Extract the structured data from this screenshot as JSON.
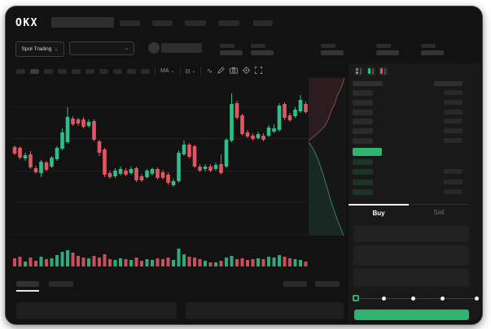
{
  "app": {
    "brand": "OKX"
  },
  "colors": {
    "up": "#2fbe8a",
    "down": "#e35561",
    "accent_green": "#2eb46e"
  },
  "header": {
    "market_type_label": "Spot Trading",
    "chevron": "⌄"
  },
  "chart_toolbar": {
    "indicator_label": "MA",
    "overlay_label": "⊟",
    "chevron": "⌄",
    "line_style": "∿"
  },
  "order_book": {
    "sell_row_count": 6,
    "buy_row_count": 4,
    "view_icons": [
      "book-combined-icon",
      "book-bids-icon",
      "book-asks-icon"
    ]
  },
  "trade_panel": {
    "tabs": [
      {
        "label": "Buy",
        "active": true
      },
      {
        "label": "Sell",
        "active": false
      }
    ],
    "slider_marks": 5
  },
  "chart_data": {
    "type": "candlestick",
    "title": "",
    "xlabel": "",
    "ylabel": "",
    "axes_labeled": false,
    "note": "UI mock: no numeric axis labels visible; OHLC values are relative chart units",
    "ohlc": [
      [
        109,
        111,
        99,
        101
      ],
      [
        108,
        110,
        94,
        96
      ],
      [
        95,
        102,
        92,
        99
      ],
      [
        100,
        104,
        82,
        84
      ],
      [
        83,
        86,
        76,
        78
      ],
      [
        77,
        93,
        72,
        91
      ],
      [
        90,
        92,
        79,
        81
      ],
      [
        85,
        98,
        83,
        96
      ],
      [
        94,
        110,
        92,
        108
      ],
      [
        107,
        132,
        105,
        127
      ],
      [
        115,
        158,
        113,
        146
      ],
      [
        144,
        147,
        135,
        137
      ],
      [
        143,
        145,
        135,
        138
      ],
      [
        143,
        146,
        132,
        134
      ],
      [
        135,
        143,
        133,
        140
      ],
      [
        141,
        143,
        116,
        118
      ],
      [
        116,
        118,
        98,
        102
      ],
      [
        106,
        108,
        72,
        75
      ],
      [
        77,
        80,
        70,
        72
      ],
      [
        73,
        83,
        71,
        80
      ],
      [
        76,
        85,
        74,
        82
      ],
      [
        80,
        83,
        73,
        75
      ],
      [
        77,
        85,
        75,
        82
      ],
      [
        83,
        85,
        66,
        68
      ],
      [
        73,
        76,
        66,
        68
      ],
      [
        72,
        82,
        70,
        80
      ],
      [
        76,
        84,
        74,
        82
      ],
      [
        82,
        84,
        69,
        71
      ],
      [
        78,
        81,
        69,
        71
      ],
      [
        75,
        78,
        63,
        65
      ],
      [
        62,
        70,
        60,
        67
      ],
      [
        67,
        105,
        65,
        102
      ],
      [
        100,
        117,
        98,
        112
      ],
      [
        112,
        114,
        95,
        97
      ],
      [
        110,
        112,
        83,
        85
      ],
      [
        85,
        88,
        78,
        80
      ],
      [
        82,
        88,
        79,
        85
      ],
      [
        85,
        88,
        78,
        80
      ],
      [
        82,
        90,
        80,
        87
      ],
      [
        88,
        100,
        75,
        77
      ],
      [
        85,
        120,
        83,
        118
      ],
      [
        117,
        175,
        115,
        162
      ],
      [
        163,
        166,
        143,
        145
      ],
      [
        148,
        150,
        123,
        125
      ],
      [
        127,
        130,
        120,
        122
      ],
      [
        123,
        126,
        117,
        119
      ],
      [
        120,
        128,
        118,
        125
      ],
      [
        123,
        126,
        116,
        118
      ],
      [
        123,
        136,
        121,
        133
      ],
      [
        128,
        137,
        126,
        132
      ],
      [
        130,
        163,
        128,
        160
      ],
      [
        162,
        164,
        142,
        145
      ],
      [
        148,
        151,
        140,
        142
      ],
      [
        147,
        158,
        145,
        155
      ],
      [
        153,
        173,
        151,
        167
      ],
      [
        162,
        165,
        150,
        152
      ]
    ],
    "volume": [
      10,
      12,
      6,
      11,
      7,
      12,
      9,
      10,
      14,
      18,
      20,
      17,
      13,
      11,
      10,
      13,
      11,
      15,
      9,
      8,
      10,
      9,
      8,
      11,
      7,
      9,
      8,
      10,
      9,
      11,
      8,
      22,
      15,
      12,
      11,
      9,
      7,
      5,
      5,
      7,
      11,
      13,
      9,
      10,
      8,
      9,
      10,
      9,
      12,
      11,
      14,
      12,
      10,
      9,
      8,
      6
    ],
    "depth": {
      "asks_line": [
        [
          423,
          96
        ],
        [
          419,
          108
        ],
        [
          414,
          118
        ],
        [
          411,
          128
        ],
        [
          407,
          136
        ],
        [
          403,
          147
        ],
        [
          399,
          155
        ],
        [
          393,
          161
        ],
        [
          388,
          166
        ],
        [
          383,
          170
        ],
        [
          379,
          173
        ]
      ],
      "bids_line": [
        [
          379,
          175
        ],
        [
          384,
          182
        ],
        [
          388,
          190
        ],
        [
          392,
          200
        ],
        [
          396,
          212
        ],
        [
          399,
          222
        ],
        [
          402,
          232
        ],
        [
          406,
          246
        ],
        [
          410,
          258
        ],
        [
          414,
          270
        ],
        [
          418,
          280
        ],
        [
          422,
          290
        ]
      ]
    }
  }
}
